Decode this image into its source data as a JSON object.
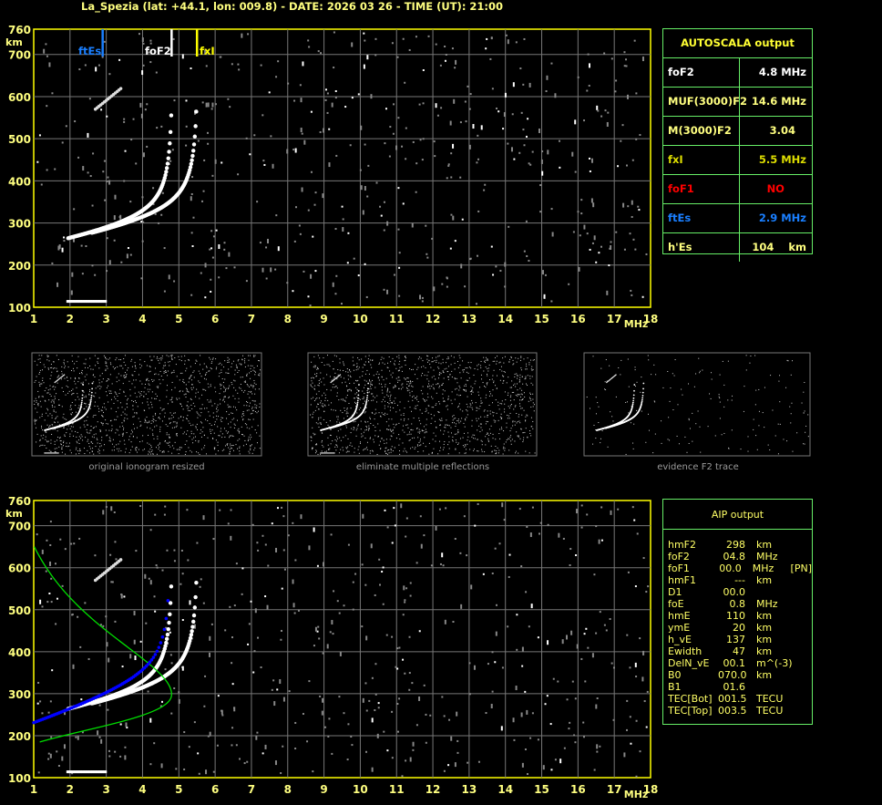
{
  "title": "La_Spezia (lat: +44.1, lon: 009.8) - DATE: 2026 03 26 - TIME (UT): 21:00",
  "markers": {
    "ftEs": "ftEs",
    "foF2": "foF2",
    "fxI": "fxI"
  },
  "colors": {
    "axis": "#ffff00",
    "grid": "#777777",
    "ftEs": "#1a7fff",
    "fxI": "#ffff00",
    "foF1": "#ff0000",
    "profile": "#00dd00",
    "fit": "#0000ff",
    "panel_border": "#66ee66"
  },
  "autoscala": {
    "title": "AUTOSCALA output",
    "rows": [
      {
        "key": "foF2",
        "value": "4.8 MHz",
        "color": "#ffffff"
      },
      {
        "key": "MUF(3000)F2",
        "value": "14.6 MHz",
        "color": "#ffff80"
      },
      {
        "key": "M(3000)F2",
        "value": "3.04   ",
        "color": "#ffff80"
      },
      {
        "key": "fxI",
        "value": "5.5 MHz",
        "color": "#dddd00"
      },
      {
        "key": "foF1",
        "value": "NO      ",
        "color": "#ff0000"
      },
      {
        "key": "ftEs",
        "value": "2.9 MHz",
        "color": "#1a7fff"
      },
      {
        "key": "h'Es",
        "value": "104    km",
        "color": "#ffff80"
      }
    ]
  },
  "aip": {
    "title": "AIP output",
    "rows": [
      [
        "hmF2",
        "298",
        "km",
        ""
      ],
      [
        "foF2",
        "04.8",
        "MHz",
        ""
      ],
      [
        "foF1",
        "00.0",
        "MHz",
        "[PN]"
      ],
      [
        "hmF1",
        "---",
        "km",
        ""
      ],
      [
        "D1",
        "00.0",
        "",
        ""
      ],
      [
        "foE",
        "0.8",
        "MHz",
        ""
      ],
      [
        "hmE",
        "110",
        "km",
        ""
      ],
      [
        "ymE",
        "20",
        "km",
        ""
      ],
      [
        "h_vE",
        "137",
        "km",
        ""
      ],
      [
        "Ewidth",
        "47",
        "km",
        ""
      ],
      [
        "DelN_vE",
        "00.1",
        "m^(-3)",
        ""
      ],
      [
        "B0",
        "070.0",
        "km",
        ""
      ],
      [
        "B1",
        "01.6",
        "",
        ""
      ],
      [
        "TEC[Bot]",
        "001.5",
        "TECU",
        ""
      ],
      [
        "TEC[Top]",
        "003.5",
        "TECU",
        ""
      ]
    ]
  },
  "captions": [
    "original ionogram resized",
    "eliminate multiple reflections",
    "evidence F2 trace"
  ],
  "chart_data": {
    "type": "scatter",
    "xlabel": "MHz",
    "ylabel": "km",
    "xlim": [
      1,
      18
    ],
    "ylim": [
      100,
      760
    ],
    "xticks": [
      "1",
      "2",
      "3",
      "4",
      "5",
      "6",
      "7",
      "8",
      "9",
      "10",
      "11",
      "12",
      "13",
      "14",
      "15",
      "16",
      "17",
      "18"
    ],
    "yticks": [
      "100",
      "200",
      "300",
      "400",
      "500",
      "600",
      "700",
      "760"
    ],
    "grid": true,
    "markers_MHz": {
      "ftEs": 2.9,
      "foF2": 4.8,
      "fxI": 5.5
    },
    "foF2": 4.8,
    "hmF2": 298,
    "hEs": 104
  }
}
